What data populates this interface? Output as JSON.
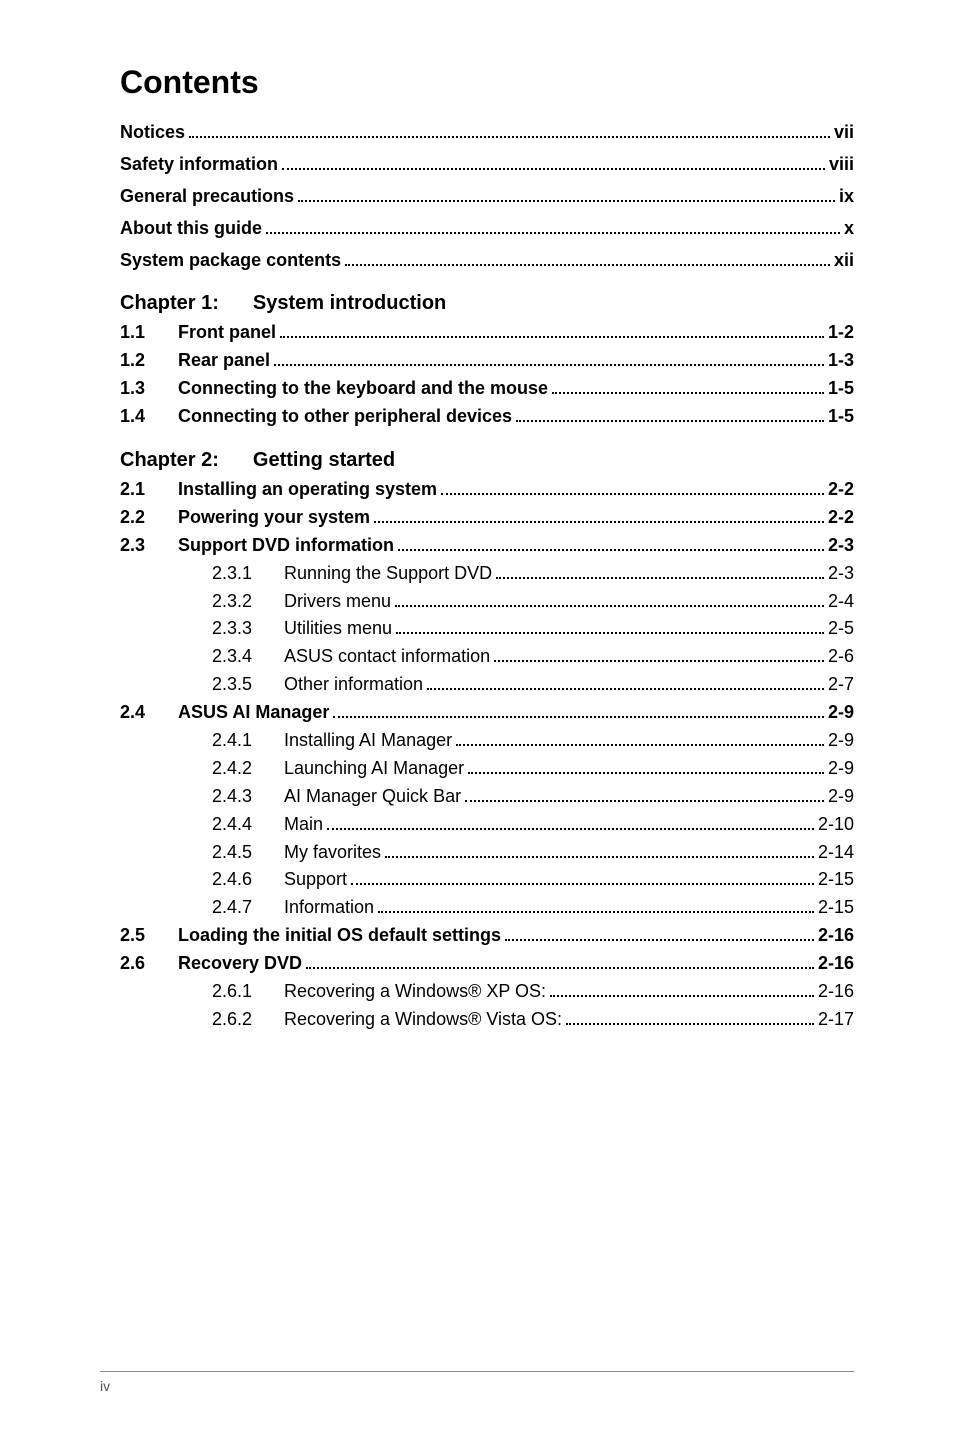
{
  "title": "Contents",
  "front_matter": [
    {
      "label": "Notices",
      "page": "vii"
    },
    {
      "label": "Safety information",
      "page": "viii"
    },
    {
      "label": "General precautions",
      "page": "ix"
    },
    {
      "label": "About this guide",
      "page": "x"
    },
    {
      "label": "System package contents",
      "page": "xii"
    }
  ],
  "chapters": [
    {
      "heading_prefix": "Chapter 1:",
      "heading_title": "System introduction",
      "sections": [
        {
          "num": "1.1",
          "label": "Front panel",
          "page": "1-2"
        },
        {
          "num": "1.2",
          "label": "Rear panel",
          "page": "1-3"
        },
        {
          "num": "1.3",
          "label": "Connecting to the keyboard and the mouse",
          "page": "1-5"
        },
        {
          "num": "1.4",
          "label": "Connecting to other peripheral devices",
          "page": "1-5"
        }
      ]
    },
    {
      "heading_prefix": "Chapter 2:",
      "heading_title": "Getting started",
      "sections": [
        {
          "num": "2.1",
          "label": "Installing an operating system",
          "page": "2-2"
        },
        {
          "num": "2.2",
          "label": "Powering your system",
          "page": "2-2"
        },
        {
          "num": "2.3",
          "label": "Support DVD information",
          "page": "2-3",
          "subs": [
            {
              "num": "2.3.1",
              "label": "Running the Support DVD",
              "page": "2-3"
            },
            {
              "num": "2.3.2",
              "label": "Drivers menu",
              "page": "2-4"
            },
            {
              "num": "2.3.3",
              "label": "Utilities menu",
              "page": "2-5"
            },
            {
              "num": "2.3.4",
              "label": "ASUS contact information",
              "page": "2-6"
            },
            {
              "num": "2.3.5",
              "label": "Other information",
              "page": "2-7"
            }
          ]
        },
        {
          "num": "2.4",
          "label": "ASUS AI Manager",
          "page": "2-9",
          "subs": [
            {
              "num": "2.4.1",
              "label": "Installing AI Manager",
              "page": "2-9"
            },
            {
              "num": "2.4.2",
              "label": "Launching AI Manager",
              "page": "2-9"
            },
            {
              "num": "2.4.3",
              "label": "AI Manager Quick Bar",
              "page": "2-9"
            },
            {
              "num": "2.4.4",
              "label": "Main",
              "page": "2-10"
            },
            {
              "num": "2.4.5",
              "label": "My favorites",
              "page": "2-14"
            },
            {
              "num": "2.4.6",
              "label": "Support",
              "page": "2-15"
            },
            {
              "num": "2.4.7",
              "label": "Information",
              "page": "2-15"
            }
          ]
        },
        {
          "num": "2.5",
          "label": "Loading the initial OS default settings",
          "page": "2-16"
        },
        {
          "num": "2.6",
          "label": "Recovery DVD",
          "page": "2-16",
          "subs": [
            {
              "num": "2.6.1",
              "label": "Recovering a Windows® XP OS:",
              "page": "2-16"
            },
            {
              "num": "2.6.2",
              "label": "Recovering a Windows® Vista OS:",
              "page": "2-17"
            }
          ]
        }
      ]
    }
  ],
  "footer_page_num": "iv",
  "style": {
    "background_color": "#ffffff",
    "text_color": "#000000",
    "title_fontsize": 32,
    "body_fontsize": 18,
    "chapter_fontsize": 20,
    "footer_color": "#555555",
    "rule_color": "#888888",
    "font_family": "Arial, Helvetica, sans-serif"
  }
}
